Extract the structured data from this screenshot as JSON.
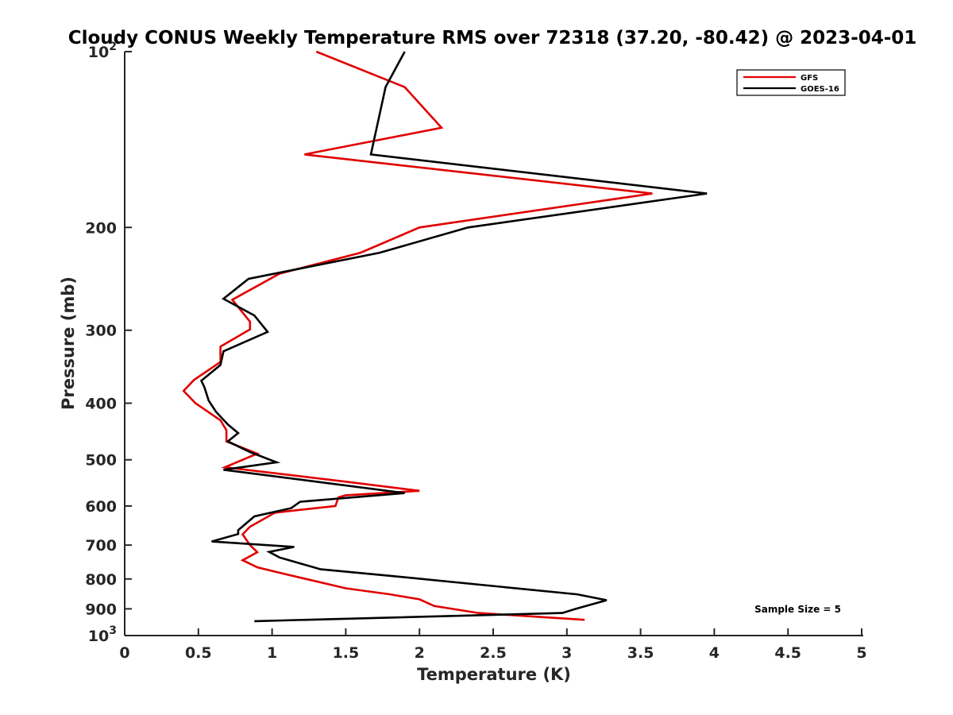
{
  "chart_data": {
    "type": "line",
    "title": "Cloudy CONUS Weekly Temperature RMS over 72318 (37.20, -80.42) @ 2023-04-01",
    "xlabel": "Temperature (K)",
    "ylabel": "Pressure (mb)",
    "xlim": [
      0,
      5
    ],
    "ylim": [
      100,
      1000
    ],
    "y_scale": "log",
    "y_reversed": true,
    "grid": false,
    "legend_position": "top-right",
    "x_ticks": [
      {
        "value": 0,
        "label": "0"
      },
      {
        "value": 0.5,
        "label": "0.5"
      },
      {
        "value": 1,
        "label": "1"
      },
      {
        "value": 1.5,
        "label": "1.5"
      },
      {
        "value": 2,
        "label": "2"
      },
      {
        "value": 2.5,
        "label": "2.5"
      },
      {
        "value": 3,
        "label": "3"
      },
      {
        "value": 3.5,
        "label": "3.5"
      },
      {
        "value": 4,
        "label": "4"
      },
      {
        "value": 4.5,
        "label": "4.5"
      },
      {
        "value": 5,
        "label": "5"
      }
    ],
    "y_ticks": [
      {
        "value": 100,
        "base": "10",
        "exp": "2"
      },
      {
        "value": 200,
        "label": "200"
      },
      {
        "value": 300,
        "label": "300"
      },
      {
        "value": 400,
        "label": "400"
      },
      {
        "value": 500,
        "label": "500"
      },
      {
        "value": 600,
        "label": "600"
      },
      {
        "value": 700,
        "label": "700"
      },
      {
        "value": 800,
        "label": "800"
      },
      {
        "value": 900,
        "label": "900"
      },
      {
        "value": 1000,
        "base": "10",
        "exp": "3"
      }
    ],
    "series": [
      {
        "name": "GFS",
        "color": "#e00000",
        "points": [
          [
            1.3,
            100
          ],
          [
            1.9,
            115
          ],
          [
            2.15,
            135
          ],
          [
            1.22,
            150
          ],
          [
            3.58,
            175
          ],
          [
            2.0,
            200
          ],
          [
            1.6,
            221
          ],
          [
            1.05,
            240
          ],
          [
            0.73,
            266
          ],
          [
            0.85,
            290
          ],
          [
            0.85,
            299
          ],
          [
            0.65,
            320
          ],
          [
            0.65,
            340
          ],
          [
            0.47,
            365
          ],
          [
            0.4,
            381
          ],
          [
            0.48,
            400
          ],
          [
            0.65,
            428
          ],
          [
            0.69,
            445
          ],
          [
            0.69,
            465
          ],
          [
            0.9,
            488
          ],
          [
            0.68,
            515
          ],
          [
            1.5,
            545
          ],
          [
            2.0,
            565
          ],
          [
            1.5,
            575
          ],
          [
            1.45,
            580
          ],
          [
            1.43,
            600
          ],
          [
            1.02,
            616
          ],
          [
            0.85,
            651
          ],
          [
            0.8,
            671
          ],
          [
            0.85,
            700
          ],
          [
            0.9,
            720
          ],
          [
            0.8,
            743
          ],
          [
            0.9,
            764
          ],
          [
            1.1,
            786
          ],
          [
            1.5,
            830
          ],
          [
            1.8,
            850
          ],
          [
            2.0,
            867
          ],
          [
            2.1,
            890
          ],
          [
            2.4,
            915
          ],
          [
            3.12,
            940
          ]
        ]
      },
      {
        "name": "GOES-16",
        "color": "#000000",
        "points": [
          [
            1.9,
            100
          ],
          [
            1.77,
            115
          ],
          [
            1.67,
            150
          ],
          [
            3.95,
            175
          ],
          [
            2.33,
            200
          ],
          [
            1.73,
            221
          ],
          [
            0.84,
            245
          ],
          [
            0.67,
            265
          ],
          [
            0.88,
            283
          ],
          [
            0.97,
            302
          ],
          [
            0.67,
            326
          ],
          [
            0.65,
            344
          ],
          [
            0.52,
            366
          ],
          [
            0.54,
            375
          ],
          [
            0.57,
            396
          ],
          [
            0.62,
            414
          ],
          [
            0.7,
            435
          ],
          [
            0.77,
            450
          ],
          [
            0.7,
            465
          ],
          [
            0.85,
            485
          ],
          [
            1.03,
            505
          ],
          [
            0.67,
            520
          ],
          [
            1.3,
            545
          ],
          [
            1.9,
            570
          ],
          [
            1.19,
            590
          ],
          [
            1.13,
            605
          ],
          [
            0.88,
            625
          ],
          [
            0.77,
            660
          ],
          [
            0.77,
            670
          ],
          [
            0.59,
            690
          ],
          [
            1.15,
            705
          ],
          [
            0.98,
            719
          ],
          [
            1.05,
            735
          ],
          [
            1.33,
            770
          ],
          [
            1.8,
            790
          ],
          [
            3.07,
            850
          ],
          [
            3.27,
            870
          ],
          [
            3.06,
            900
          ],
          [
            2.97,
            915
          ],
          [
            0.88,
            945
          ]
        ]
      }
    ],
    "annotations": [
      {
        "text": "Sample Size = 5",
        "position": "bottom-right"
      }
    ]
  }
}
